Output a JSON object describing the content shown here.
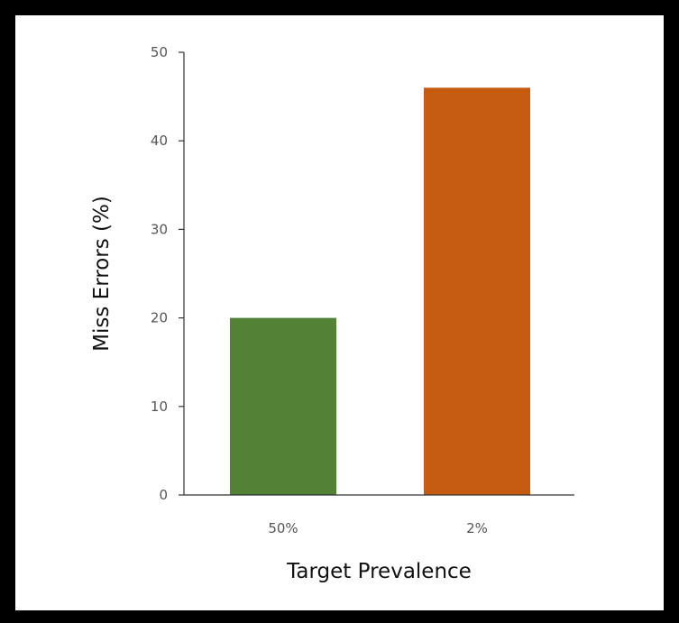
{
  "chart_data": {
    "type": "bar",
    "title": "",
    "xlabel": "Target Prevalence",
    "ylabel": "Miss Errors (%)",
    "categories": [
      "50%",
      "2%"
    ],
    "values": [
      20,
      46
    ],
    "colors": [
      "#538135",
      "#c55a11"
    ],
    "ylim": [
      0,
      50
    ],
    "yticks": [
      0,
      10,
      20,
      30,
      40,
      50
    ],
    "grid": false,
    "legend": "none"
  }
}
